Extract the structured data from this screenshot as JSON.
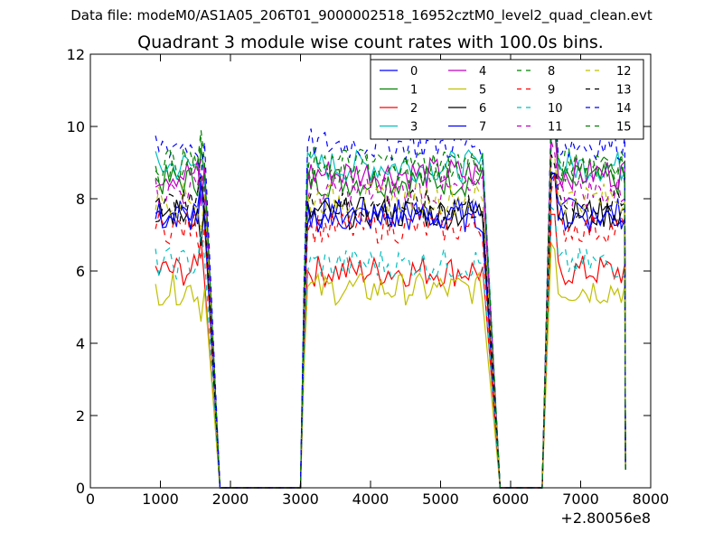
{
  "figure": {
    "suptitle": "Data file: modeM0/AS1A05_206T01_9000002518_16952cztM0_level2_quad_clean.evt",
    "title": "Quadrant 3 module wise count rates with 100.0s bins.",
    "x_offset_label": "+2.80056e8"
  },
  "chart_data": {
    "type": "line",
    "title": "Quadrant 3 module wise count rates with 100.0s bins.",
    "xlabel": "",
    "ylabel": "",
    "xlim": [
      0,
      8000
    ],
    "ylim": [
      0,
      12
    ],
    "x_offset": 280056000,
    "x_ticks": [
      0,
      1000,
      2000,
      3000,
      4000,
      5000,
      6000,
      7000,
      8000
    ],
    "x_tick_labels": [
      "0",
      "1000",
      "2000",
      "3000",
      "4000",
      "5000",
      "6000",
      "7000",
      "8000"
    ],
    "y_ticks": [
      0,
      2,
      4,
      6,
      8,
      10,
      12
    ],
    "y_tick_labels": [
      "0",
      "2",
      "4",
      "6",
      "8",
      "10",
      "12"
    ],
    "grid": false,
    "legend": {
      "location": "top-right",
      "columns": 4
    },
    "bin_seconds": 100.0,
    "segments": [
      {
        "start": 930,
        "step": 50,
        "points": 15
      },
      {
        "start": 3050,
        "step": 50,
        "points": 52
      },
      {
        "start": 6580,
        "step": 50,
        "points": 22
      }
    ],
    "gap_times": [
      1850,
      2600,
      3000,
      5850,
      6450
    ],
    "series": [
      {
        "name": "0",
        "color": "#0000ff",
        "dash": "solid",
        "level": 7.6
      },
      {
        "name": "1",
        "color": "#008000",
        "dash": "solid",
        "level": 8.5
      },
      {
        "name": "2",
        "color": "#ff0000",
        "dash": "solid",
        "level": 6.0
      },
      {
        "name": "3",
        "color": "#00bfbf",
        "dash": "solid",
        "level": 8.9
      },
      {
        "name": "4",
        "color": "#bf00bf",
        "dash": "solid",
        "level": 8.7
      },
      {
        "name": "5",
        "color": "#bfbf00",
        "dash": "solid",
        "level": 5.5
      },
      {
        "name": "6",
        "color": "#000000",
        "dash": "solid",
        "level": 7.6
      },
      {
        "name": "7",
        "color": "#0000ff",
        "dash": "solid",
        "level": 7.5
      },
      {
        "name": "8",
        "color": "#008000",
        "dash": "dashed",
        "level": 8.8
      },
      {
        "name": "9",
        "color": "#ff0000",
        "dash": "dashed",
        "level": 7.2
      },
      {
        "name": "10",
        "color": "#00bfbf",
        "dash": "dashed",
        "level": 6.2
      },
      {
        "name": "11",
        "color": "#bf00bf",
        "dash": "dashed",
        "level": 8.2
      },
      {
        "name": "12",
        "color": "#bfbf00",
        "dash": "dashed",
        "level": 8.0
      },
      {
        "name": "13",
        "color": "#000000",
        "dash": "dashed",
        "level": 7.8
      },
      {
        "name": "14",
        "color": "#0000ff",
        "dash": "dashed",
        "level": 9.5
      },
      {
        "name": "15",
        "color": "#008000",
        "dash": "dashed",
        "level": 9.0
      }
    ]
  }
}
